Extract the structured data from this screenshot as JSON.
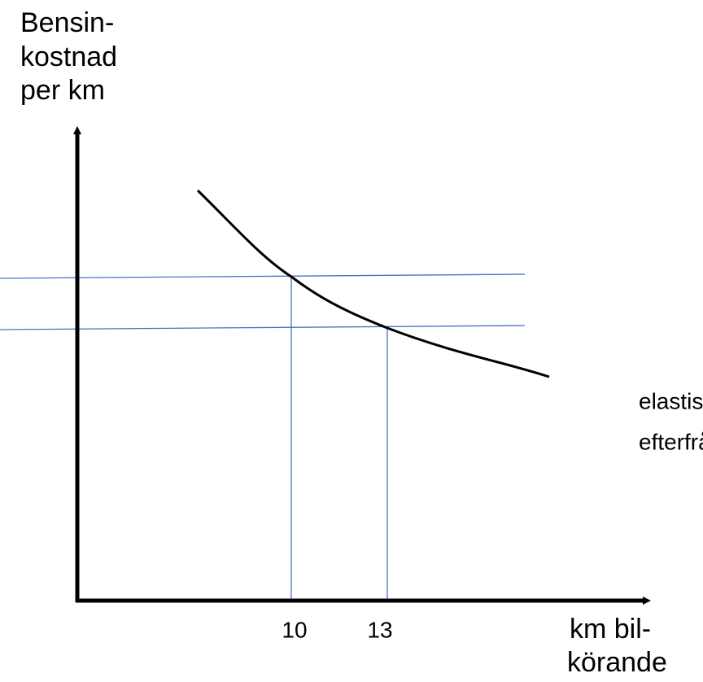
{
  "y_axis_label": [
    "Bensin-",
    "kostnad",
    "per km"
  ],
  "x_axis_label": [
    "km bil-",
    "körande"
  ],
  "curve_label": [
    "elastisk",
    "efterfrågan"
  ],
  "x_markers": [
    "10",
    "13"
  ]
}
